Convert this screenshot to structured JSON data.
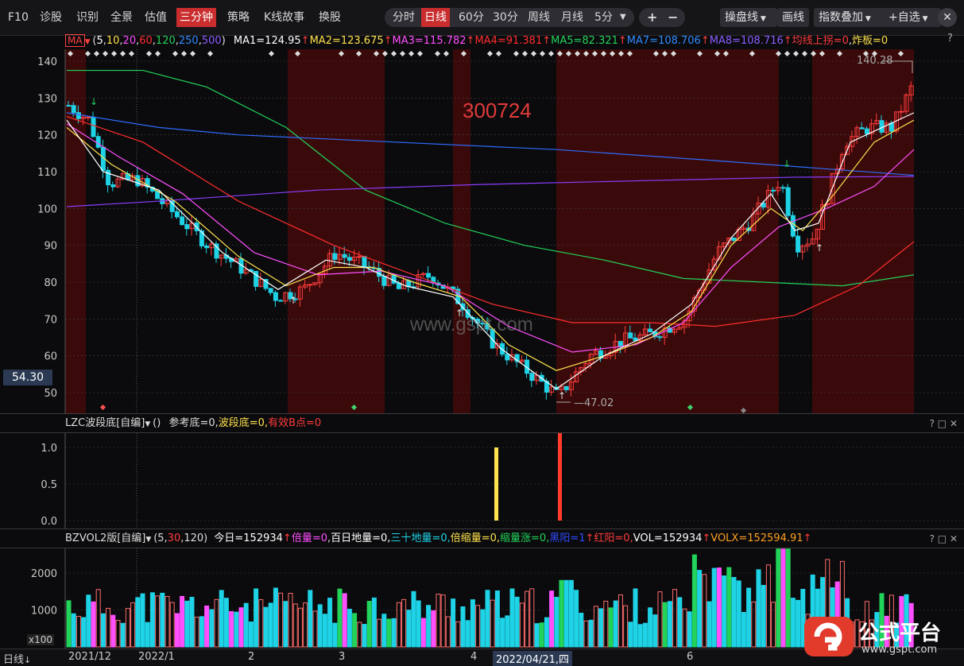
{
  "toolbar": {
    "items": [
      "F10",
      "诊股",
      "识别",
      "全景",
      "估值",
      "三分钟",
      "策略",
      "K线故事",
      "换股"
    ],
    "active_item": "三分钟",
    "periods": [
      "分时",
      "日线",
      "60分",
      "30分",
      "周线",
      "月线",
      "5分"
    ],
    "active_period": "日线",
    "plus": "+",
    "minus": "−",
    "pan_line": "操盘线",
    "draw": "画线",
    "index_overlay": "指数叠加",
    "add_favorite": "+自选",
    "close": "✕"
  },
  "ma_bar": {
    "tag": "MA",
    "params_open": "(",
    "params": [
      "5",
      "10",
      "20",
      "60",
      "120",
      "250",
      "500"
    ],
    "params_close": ")",
    "ma1": "MA1=124.95",
    "ma2": "MA2=123.675",
    "ma3": "MA3=115.782",
    "ma4": "MA4=91.381",
    "ma5": "MA5=82.321",
    "ma7": "MA7=108.706",
    "ma8": "MA8=108.716",
    "junxian": "均线上拐=0",
    "zhaban": "炸板=0",
    "help": "?"
  },
  "main": {
    "stock_code": "300724",
    "watermark": "www.gspt.com",
    "price_high": "140.28",
    "price_low": "47.02",
    "current_price": "54.30",
    "y_ticks": [
      "140",
      "130",
      "120",
      "110",
      "100",
      "90",
      "80",
      "70",
      "60",
      "50"
    ],
    "colors": {
      "up": "#ff3b3b",
      "down": "#1fd3e6",
      "ma5": "#ffffff",
      "ma10": "#ffe24d",
      "ma20": "#ff4fff",
      "ma60": "#ff2d2d",
      "ma120": "#22d35a",
      "ma250": "#2f6bff",
      "ma500": "#8a3cff",
      "bg_red": "#3a0a0a"
    }
  },
  "lzc": {
    "title": "LZC波段底[自编]",
    "paren": "()",
    "ref_bottom": "参考底=0,",
    "wave_bottom": "波段底=0,",
    "valid_b": "有效B点=0",
    "y_ticks": [
      "1.0",
      "0.5",
      "0.0"
    ],
    "icons": "? □ ✕"
  },
  "vol": {
    "title": "BZVOL2版[自编]",
    "params": "(5,",
    "p30": "30",
    "p120": ",120)",
    "today": "今日=152934",
    "double": "倍量=0",
    "hundred": "百日地量=0,",
    "thirty": "三十地量=0,",
    "shrink": "倍缩量=0,",
    "shrink_up": "缩量涨=0,",
    "black_yang": "黑阳=1",
    "red_yang": "红阳=0,",
    "vol": "VOL=152934",
    "volx": "VOLX=152594.91",
    "y_ticks": [
      "2000",
      "1000"
    ],
    "unit": "x100",
    "icons": "? □ ✕"
  },
  "bottom": {
    "period_label": "日线",
    "dates": [
      "2021/12",
      "2022/1",
      "2",
      "3",
      "4",
      "2022/04/21,四",
      "6"
    ]
  },
  "logo": {
    "text": "公式平台",
    "url": "www.gspt.com"
  }
}
